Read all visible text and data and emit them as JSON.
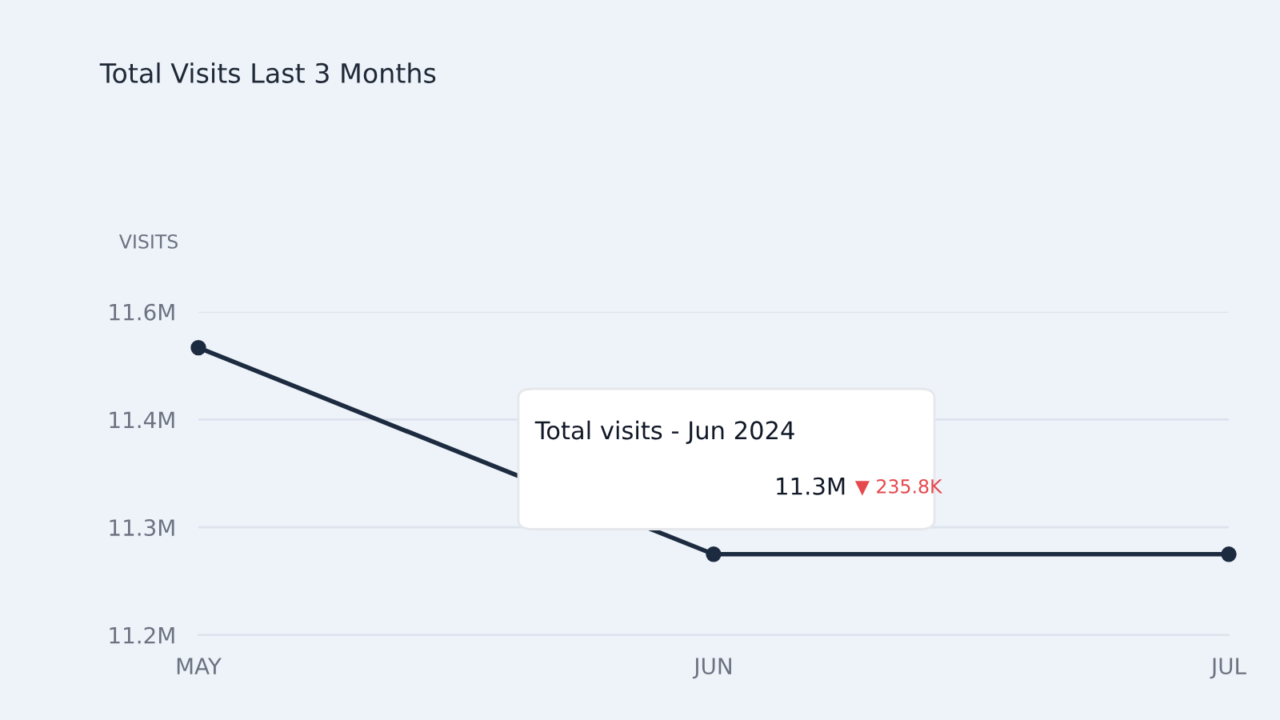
{
  "chart_data": {
    "type": "line",
    "title": "Total Visits Last 3 Months",
    "ylabel": "VISITS",
    "categories": [
      "MAY",
      "JUN",
      "JUL"
    ],
    "series": [
      {
        "color": "#1c2b3f",
        "values": [
          11.52,
          11.29,
          11.29
        ]
      }
    ],
    "ylim": [
      11.2,
      11.56
    ],
    "yticks": [
      {
        "value": 11.2,
        "label": "11.2M"
      },
      {
        "value": 11.32,
        "label": "11.3M"
      },
      {
        "value": 11.44,
        "label": "11.4M"
      },
      {
        "value": 11.56,
        "label": "11.6M"
      }
    ],
    "grid": "y",
    "marker": "circle",
    "line_style": "solid",
    "annotations": [
      "Total visits - Jun 2024",
      "11.3M",
      "▼ 235.8K"
    ]
  }
}
